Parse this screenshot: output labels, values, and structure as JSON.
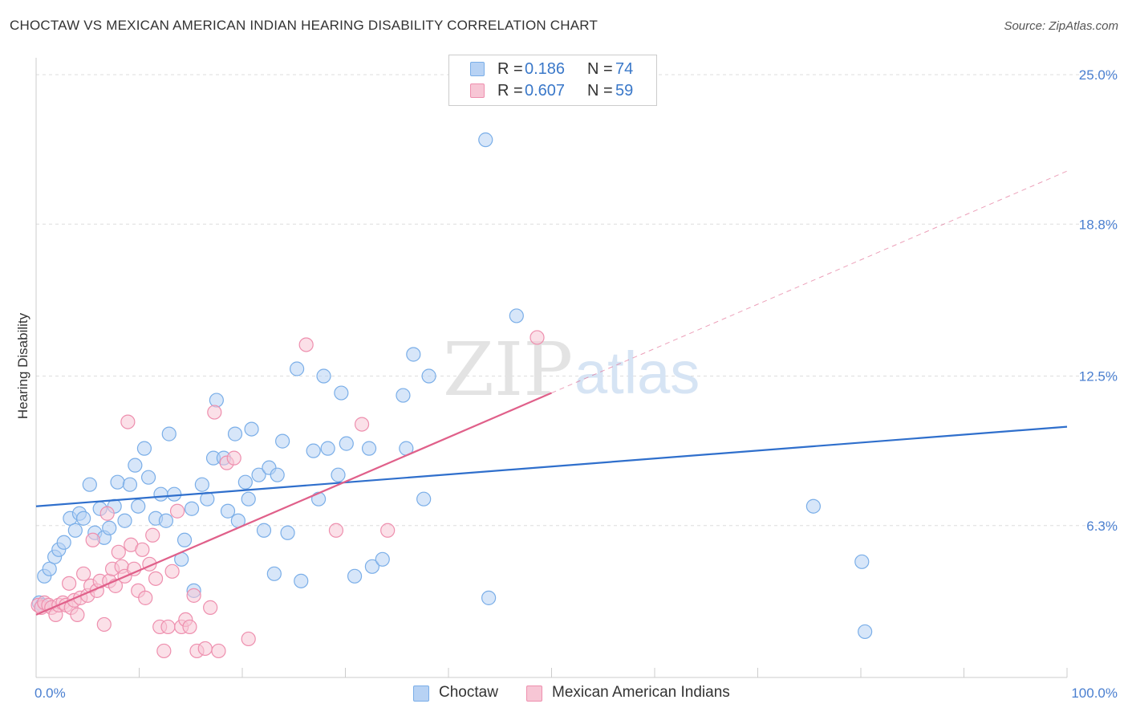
{
  "title": "CHOCTAW VS MEXICAN AMERICAN INDIAN HEARING DISABILITY CORRELATION CHART",
  "source": "Source: ZipAtlas.com",
  "watermark": {
    "zip": "ZIP",
    "atlas": "atlas"
  },
  "colors": {
    "choctaw": "#7aaee8",
    "choctaw_fill": "#b7d2f4",
    "choctaw_line": "#2f6fcc",
    "mexican": "#ee8fae",
    "mexican_fill": "#f7c6d5",
    "mexican_line": "#e0608a",
    "tick_label": "#4a7fd0",
    "grid": "#dddddd"
  },
  "legend": {
    "rows": [
      {
        "series": "choctaw",
        "r_label": "R =",
        "r_value": "0.186",
        "n_label": "N =",
        "n_value": "74"
      },
      {
        "series": "mexican",
        "r_label": "R =",
        "r_value": "0.607",
        "n_label": "N =",
        "n_value": "59"
      }
    ]
  },
  "bottom_legend": [
    {
      "series": "choctaw",
      "label": "Choctaw"
    },
    {
      "series": "mexican",
      "label": "Mexican American Indians"
    }
  ],
  "chart_data": {
    "type": "scatter",
    "title": "CHOCTAW VS MEXICAN AMERICAN INDIAN HEARING DISABILITY CORRELATION CHART",
    "xlabel": "",
    "ylabel": "Hearing Disability",
    "xlim": [
      0,
      100
    ],
    "ylim": [
      0,
      25.7
    ],
    "x_tick_labels": [
      {
        "value": 0,
        "label": "0.0%"
      },
      {
        "value": 100,
        "label": "100.0%"
      }
    ],
    "y_ticks": [
      {
        "value": 6.3,
        "label": "6.3%"
      },
      {
        "value": 12.5,
        "label": "12.5%"
      },
      {
        "value": 18.8,
        "label": "18.8%"
      },
      {
        "value": 25.0,
        "label": "25.0%"
      }
    ],
    "grid": true,
    "series": [
      {
        "name": "Choctaw",
        "key": "choctaw",
        "points": [
          [
            0.3,
            3.1
          ],
          [
            0.6,
            3.0
          ],
          [
            0.8,
            4.2
          ],
          [
            1.3,
            4.5
          ],
          [
            1.8,
            5.0
          ],
          [
            2.2,
            5.3
          ],
          [
            2.7,
            5.6
          ],
          [
            3.3,
            6.6
          ],
          [
            3.8,
            6.1
          ],
          [
            4.2,
            6.8
          ],
          [
            4.6,
            6.6
          ],
          [
            5.2,
            8.0
          ],
          [
            5.7,
            6.0
          ],
          [
            6.2,
            7.0
          ],
          [
            6.6,
            5.8
          ],
          [
            7.1,
            6.2
          ],
          [
            7.6,
            7.1
          ],
          [
            7.9,
            8.1
          ],
          [
            8.6,
            6.5
          ],
          [
            9.1,
            8.0
          ],
          [
            9.6,
            8.8
          ],
          [
            9.9,
            7.1
          ],
          [
            10.5,
            9.5
          ],
          [
            10.9,
            8.3
          ],
          [
            11.6,
            6.6
          ],
          [
            12.1,
            7.6
          ],
          [
            12.6,
            6.5
          ],
          [
            12.9,
            10.1
          ],
          [
            13.4,
            7.6
          ],
          [
            14.1,
            4.9
          ],
          [
            14.4,
            5.7
          ],
          [
            15.1,
            7.0
          ],
          [
            15.3,
            3.6
          ],
          [
            16.1,
            8.0
          ],
          [
            16.6,
            7.4
          ],
          [
            17.2,
            9.1
          ],
          [
            17.5,
            11.5
          ],
          [
            18.2,
            9.1
          ],
          [
            18.6,
            6.9
          ],
          [
            19.3,
            10.1
          ],
          [
            19.6,
            6.5
          ],
          [
            20.3,
            8.1
          ],
          [
            20.6,
            7.4
          ],
          [
            20.9,
            10.3
          ],
          [
            21.6,
            8.4
          ],
          [
            22.1,
            6.1
          ],
          [
            22.6,
            8.7
          ],
          [
            23.1,
            4.3
          ],
          [
            23.4,
            8.4
          ],
          [
            23.9,
            9.8
          ],
          [
            24.4,
            6.0
          ],
          [
            25.3,
            12.8
          ],
          [
            25.7,
            4.0
          ],
          [
            26.9,
            9.4
          ],
          [
            27.4,
            7.4
          ],
          [
            27.9,
            12.5
          ],
          [
            28.3,
            9.5
          ],
          [
            29.3,
            8.4
          ],
          [
            29.6,
            11.8
          ],
          [
            30.1,
            9.7
          ],
          [
            30.9,
            4.2
          ],
          [
            32.3,
            9.5
          ],
          [
            32.6,
            4.6
          ],
          [
            33.6,
            4.9
          ],
          [
            35.6,
            11.7
          ],
          [
            35.9,
            9.5
          ],
          [
            36.6,
            13.4
          ],
          [
            37.6,
            7.4
          ],
          [
            38.1,
            12.5
          ],
          [
            43.6,
            22.3
          ],
          [
            43.9,
            3.3
          ],
          [
            46.6,
            15.0
          ],
          [
            75.4,
            7.1
          ],
          [
            80.1,
            4.8
          ],
          [
            80.4,
            1.9
          ]
        ],
        "trend": {
          "x": [
            0,
            100
          ],
          "y": [
            7.1,
            10.4
          ],
          "style": "solid"
        }
      },
      {
        "name": "Mexican American Indians",
        "key": "mexican",
        "points": [
          [
            0.2,
            3.0
          ],
          [
            0.5,
            2.9
          ],
          [
            0.8,
            3.1
          ],
          [
            1.2,
            3.0
          ],
          [
            1.5,
            2.9
          ],
          [
            1.9,
            2.6
          ],
          [
            2.2,
            3.0
          ],
          [
            2.6,
            3.1
          ],
          [
            2.9,
            3.0
          ],
          [
            3.2,
            3.9
          ],
          [
            3.4,
            2.9
          ],
          [
            3.7,
            3.2
          ],
          [
            4.0,
            2.6
          ],
          [
            4.3,
            3.3
          ],
          [
            4.6,
            4.3
          ],
          [
            5.0,
            3.4
          ],
          [
            5.3,
            3.8
          ],
          [
            5.5,
            5.7
          ],
          [
            5.9,
            3.6
          ],
          [
            6.2,
            4.0
          ],
          [
            6.6,
            2.2
          ],
          [
            6.9,
            6.8
          ],
          [
            7.1,
            4.0
          ],
          [
            7.4,
            4.5
          ],
          [
            7.7,
            3.8
          ],
          [
            8.0,
            5.2
          ],
          [
            8.3,
            4.6
          ],
          [
            8.6,
            4.2
          ],
          [
            8.9,
            10.6
          ],
          [
            9.2,
            5.5
          ],
          [
            9.5,
            4.5
          ],
          [
            9.9,
            3.6
          ],
          [
            10.3,
            5.3
          ],
          [
            10.6,
            3.3
          ],
          [
            11.0,
            4.7
          ],
          [
            11.3,
            5.9
          ],
          [
            11.6,
            4.1
          ],
          [
            12.0,
            2.1
          ],
          [
            12.4,
            1.1
          ],
          [
            12.8,
            2.1
          ],
          [
            13.2,
            4.4
          ],
          [
            13.7,
            6.9
          ],
          [
            14.1,
            2.1
          ],
          [
            14.5,
            2.4
          ],
          [
            14.9,
            2.1
          ],
          [
            15.3,
            3.4
          ],
          [
            15.6,
            1.1
          ],
          [
            16.4,
            1.2
          ],
          [
            16.9,
            2.9
          ],
          [
            17.3,
            11.0
          ],
          [
            17.7,
            1.1
          ],
          [
            18.5,
            8.9
          ],
          [
            19.2,
            9.1
          ],
          [
            20.6,
            1.6
          ],
          [
            26.2,
            13.8
          ],
          [
            29.1,
            6.1
          ],
          [
            31.6,
            10.5
          ],
          [
            34.1,
            6.1
          ],
          [
            48.6,
            14.1
          ]
        ],
        "trend": {
          "x": [
            0,
            50
          ],
          "y": [
            2.6,
            11.8
          ],
          "style": "solid"
        },
        "trend_extension": {
          "x": [
            50,
            100
          ],
          "y": [
            11.8,
            21.0
          ],
          "style": "dashed"
        }
      }
    ]
  }
}
